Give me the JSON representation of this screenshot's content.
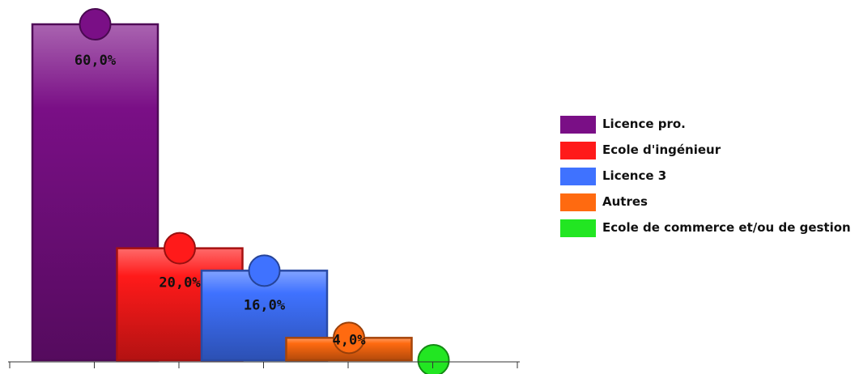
{
  "chart_data": {
    "type": "bar",
    "title": "",
    "xlabel": "",
    "ylabel": "",
    "ylim": [
      0,
      60
    ],
    "categories": [
      "Licence pro.",
      "Ecole d'ingénieur",
      "Licence 3",
      "Autres",
      "Ecole de commerce et/ou de gestion"
    ],
    "values": [
      60.0,
      20.0,
      16.0,
      4.0,
      0.0
    ],
    "data_labels": [
      "60,0%",
      "20,0%",
      "16,0%",
      "4,0%",
      ""
    ],
    "colors": [
      "#7a0f86",
      "#ff1a1a",
      "#3f72ff",
      "#ff6a10",
      "#22e622"
    ],
    "grid": false,
    "legend_position": "right"
  },
  "legend": {
    "items": [
      {
        "label": "Licence pro.",
        "color": "#7a0f86"
      },
      {
        "label": "Ecole d'ingénieur",
        "color": "#ff1a1a"
      },
      {
        "label": "Licence 3",
        "color": "#3f72ff"
      },
      {
        "label": "Autres",
        "color": "#ff6a10"
      },
      {
        "label": "Ecole de commerce et/ou de gestion",
        "color": "#22e622"
      }
    ]
  }
}
